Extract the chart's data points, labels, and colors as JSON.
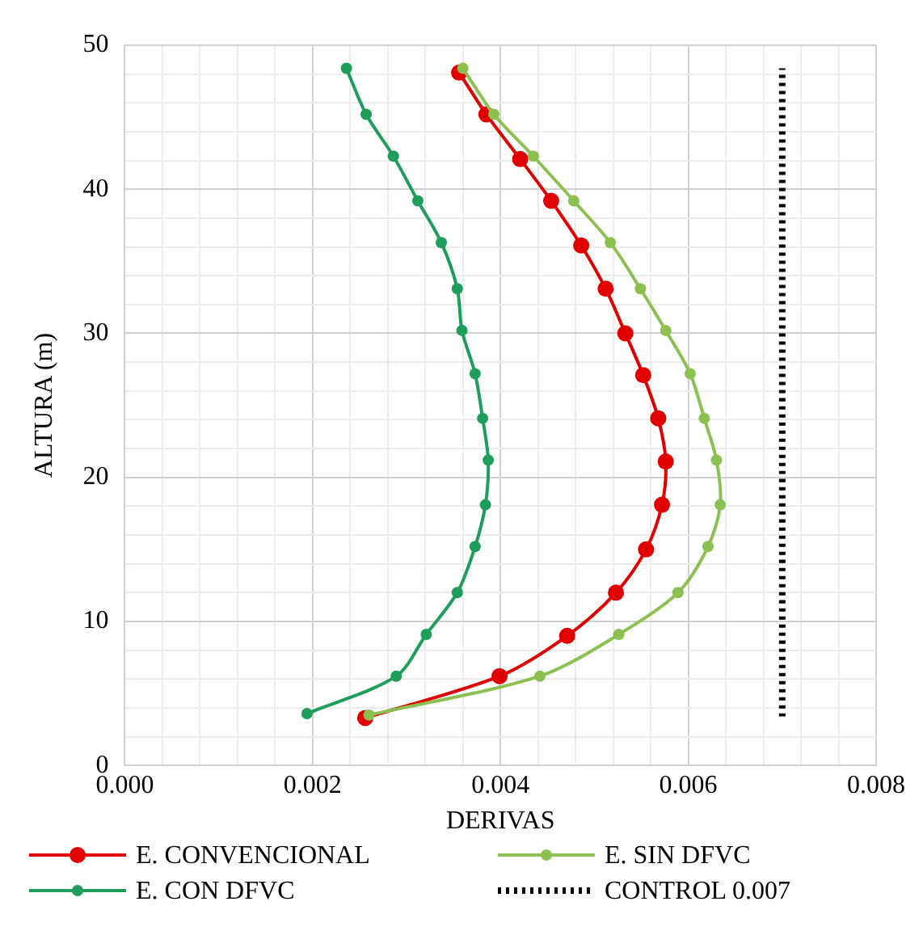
{
  "chart_data": {
    "type": "line",
    "xlabel": "DERIVAS",
    "ylabel": "ALTURA (m)",
    "xlim": [
      0,
      0.008
    ],
    "ylim": [
      0,
      50
    ],
    "xticks": [
      {
        "value": 0,
        "label": "0.000"
      },
      {
        "value": 0.0004,
        "label": null
      },
      {
        "value": 0.0008,
        "label": null
      },
      {
        "value": 0.0012,
        "label": null
      },
      {
        "value": 0.0016,
        "label": null
      },
      0.002,
      {
        "value": 0.0024,
        "label": null
      },
      {
        "value": 0.0028,
        "label": null
      },
      {
        "value": 0.0032,
        "label": null
      },
      {
        "value": 0.0036,
        "label": null
      },
      0.004,
      {
        "value": 0.0044,
        "label": null
      },
      {
        "value": 0.0048,
        "label": null
      },
      {
        "value": 0.0052,
        "label": null
      },
      {
        "value": 0.0056,
        "label": null
      },
      0.006,
      {
        "value": 0.0064,
        "label": null
      },
      {
        "value": 0.0068,
        "label": null
      },
      {
        "value": 0.0072,
        "label": null
      },
      {
        "value": 0.0076,
        "label": null
      },
      0.008
    ],
    "yticks": [
      0,
      {
        "value": 2,
        "label": null
      },
      {
        "value": 4,
        "label": null
      },
      {
        "value": 6,
        "label": null
      },
      {
        "value": 8,
        "label": null
      },
      10,
      {
        "value": 12,
        "label": null
      },
      {
        "value": 14,
        "label": null
      },
      {
        "value": 16,
        "label": null
      },
      {
        "value": 18,
        "label": null
      },
      20,
      {
        "value": 22,
        "label": null
      },
      {
        "value": 24,
        "label": null
      },
      {
        "value": 26,
        "label": null
      },
      {
        "value": 28,
        "label": null
      },
      30,
      {
        "value": 32,
        "label": null
      },
      {
        "value": 34,
        "label": null
      },
      {
        "value": 36,
        "label": null
      },
      {
        "value": 38,
        "label": null
      },
      40,
      {
        "value": 42,
        "label": null
      },
      {
        "value": 44,
        "label": null
      },
      {
        "value": 46,
        "label": null
      },
      {
        "value": 48,
        "label": null
      },
      50
    ],
    "grid": true,
    "legend": "bottom",
    "series": [
      {
        "name": "E. CONVENCIONAL",
        "color": "#e00000",
        "marker": "circle",
        "line_style": "solid",
        "x": [
          0.00256,
          0.00399,
          0.00471,
          0.00523,
          0.00555,
          0.00572,
          0.00576,
          0.00568,
          0.00552,
          0.00533,
          0.00512,
          0.00486,
          0.00454,
          0.00421,
          0.00385,
          0.00356
        ],
        "values": [
          3.3,
          6.2,
          9.0,
          12.0,
          15.0,
          18.1,
          21.1,
          24.1,
          27.1,
          30.0,
          33.1,
          36.1,
          39.2,
          42.1,
          45.2,
          48.1
        ]
      },
      {
        "name": "E. SIN DFVC",
        "color": "#8cc152",
        "marker": "circle",
        "line_style": "solid",
        "x": [
          0.0026,
          0.00442,
          0.00526,
          0.00589,
          0.00621,
          0.00634,
          0.0063,
          0.00617,
          0.00602,
          0.00576,
          0.00549,
          0.00517,
          0.00478,
          0.00435,
          0.00393,
          0.0036
        ],
        "values": [
          3.5,
          6.2,
          9.1,
          12.0,
          15.2,
          18.1,
          21.2,
          24.1,
          27.2,
          30.2,
          33.1,
          36.3,
          39.2,
          42.3,
          45.2,
          48.4
        ]
      },
      {
        "name": "E. CON DFVC",
        "color": "#1e9e5a",
        "marker": "circle",
        "line_style": "solid",
        "x": [
          0.00194,
          0.00289,
          0.00321,
          0.00354,
          0.00373,
          0.00384,
          0.00387,
          0.00381,
          0.00373,
          0.00359,
          0.00354,
          0.00337,
          0.00312,
          0.00286,
          0.00257,
          0.00236
        ],
        "values": [
          3.6,
          6.2,
          9.1,
          12.0,
          15.2,
          18.1,
          21.2,
          24.1,
          27.2,
          30.2,
          33.1,
          36.3,
          39.2,
          42.3,
          45.2,
          48.4
        ]
      },
      {
        "name": "CONTROL 0.007",
        "color": "#000000",
        "marker": "none",
        "line_style": "dotted",
        "x": [
          0.007,
          0.007
        ],
        "values": [
          3.4,
          48.4
        ]
      }
    ]
  }
}
